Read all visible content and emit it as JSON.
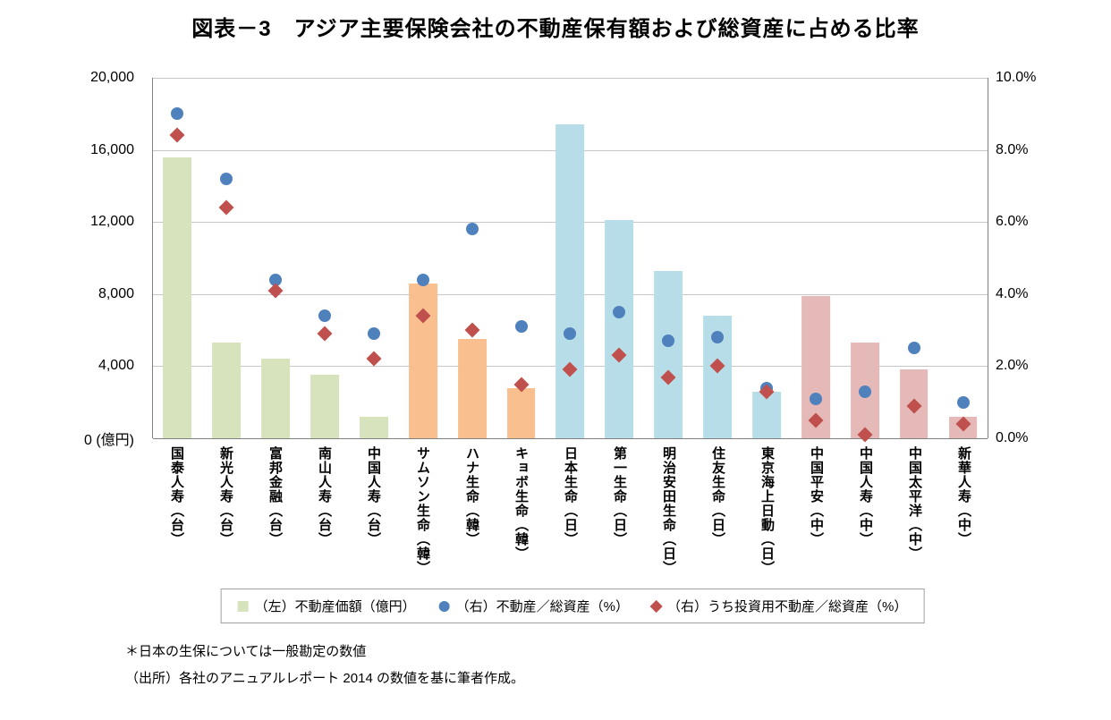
{
  "title": "図表－3　アジア主要保険会社の不動産保有額および総資産に占める比率",
  "left_axis": {
    "ticks": [
      "20,000",
      "16,000",
      "12,000",
      "8,000",
      "4,000",
      "0 (億円)"
    ],
    "max": 20000
  },
  "right_axis": {
    "ticks": [
      "10.0%",
      "8.0%",
      "6.0%",
      "4.0%",
      "2.0%",
      "0.0%"
    ],
    "max": 10
  },
  "legend": [
    {
      "marker": "square",
      "color": "#d6e3bc",
      "label": "（左）不動産価額（億円）"
    },
    {
      "marker": "circle",
      "color": "#4f81bd",
      "label": "（右）不動産／総資産（%）"
    },
    {
      "marker": "diamond",
      "color": "#c0504d",
      "label": "（右）うち投資用不動産／総資産（%）"
    }
  ],
  "footnotes": [
    "＊日本の生保については一般勘定の数値",
    "（出所）各社のアニュアルレポート 2014 の数値を基に筆者作成。"
  ],
  "chart_data": {
    "type": "bar",
    "title": "図表－3　アジア主要保険会社の不動産保有額および総資産に占める比率",
    "categories": [
      "国泰人寿（台）",
      "新光人寿（台）",
      "富邦金融（台）",
      "南山人寿（台）",
      "中国人寿（台）",
      "サムソン生命（韓）",
      "ハナ生命（韓）",
      "キョボ生命（韓）",
      "日本生命（日）",
      "第一生命（日）",
      "明治安田生命（日）",
      "住友生命（日）",
      "東京海上日動（日）",
      "中国平安（中）",
      "中国人寿（中）",
      "中国太平洋（中）",
      "新華人寿（中）"
    ],
    "groups": [
      "taiwan",
      "taiwan",
      "taiwan",
      "taiwan",
      "taiwan",
      "korea",
      "korea",
      "korea",
      "japan",
      "japan",
      "japan",
      "japan",
      "japan",
      "china",
      "china",
      "china",
      "china"
    ],
    "group_colors": {
      "taiwan": "#d6e3bc",
      "korea": "#fabf8f",
      "japan": "#b7dee8",
      "china": "#e5b9b7"
    },
    "series": [
      {
        "name": "（左）不動産価額（億円）",
        "type": "bar",
        "axis": "left",
        "values": [
          15600,
          5300,
          4400,
          3500,
          1200,
          8600,
          5500,
          2800,
          17400,
          12100,
          9300,
          6800,
          2600,
          7900,
          5300,
          3800,
          1200
        ]
      },
      {
        "name": "（右）不動産／総資産（%）",
        "type": "scatter-circle",
        "axis": "right",
        "color": "#4f81bd",
        "values": [
          9.0,
          7.2,
          4.4,
          3.4,
          2.9,
          4.4,
          5.8,
          3.1,
          2.9,
          3.5,
          2.7,
          2.8,
          1.4,
          1.1,
          1.3,
          2.5,
          1.0
        ]
      },
      {
        "name": "（右）うち投資用不動産／総資産（%）",
        "type": "scatter-diamond",
        "axis": "right",
        "color": "#c0504d",
        "values": [
          8.4,
          6.4,
          4.1,
          2.9,
          2.2,
          3.4,
          3.0,
          1.5,
          1.9,
          2.3,
          1.7,
          2.0,
          1.3,
          0.5,
          0.1,
          0.9,
          0.4
        ]
      }
    ],
    "left_ylim": [
      0,
      20000
    ],
    "right_ylim": [
      0,
      10
    ],
    "grid": true,
    "legend_position": "bottom"
  }
}
